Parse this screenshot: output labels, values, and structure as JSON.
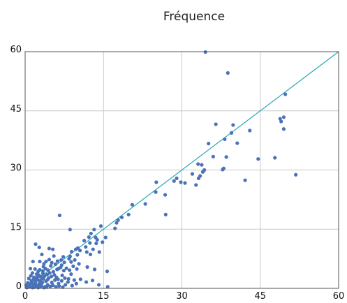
{
  "chart_data": {
    "type": "scatter",
    "title": "Fréquence",
    "xlabel": "",
    "ylabel": "",
    "xlim": [
      0,
      60
    ],
    "ylim": [
      0,
      60
    ],
    "x_ticks": [
      "0",
      "15",
      "30",
      "45",
      "60"
    ],
    "y_ticks": [
      "0",
      "15",
      "30",
      "45",
      "60"
    ],
    "grid": true,
    "reference_line": {
      "from": [
        0,
        0
      ],
      "to": [
        60,
        60
      ],
      "color": "#27a6b8"
    },
    "point_color": "#4a72b8",
    "points": [
      [
        34.5,
        59.9
      ],
      [
        38.8,
        54.6
      ],
      [
        49.8,
        49.2
      ],
      [
        49.5,
        43.4
      ],
      [
        48.8,
        43.0
      ],
      [
        49.0,
        42.3
      ],
      [
        49.5,
        40.4
      ],
      [
        36.5,
        41.6
      ],
      [
        39.8,
        41.4
      ],
      [
        43.0,
        40.0
      ],
      [
        39.5,
        39.4
      ],
      [
        38.2,
        37.8
      ],
      [
        40.6,
        36.8
      ],
      [
        35.1,
        36.7
      ],
      [
        44.6,
        32.8
      ],
      [
        47.8,
        33.1
      ],
      [
        38.5,
        33.3
      ],
      [
        36.0,
        33.4
      ],
      [
        33.1,
        31.5
      ],
      [
        33.8,
        31.3
      ],
      [
        32.0,
        29.0
      ],
      [
        34.3,
        30.0
      ],
      [
        34.0,
        29.5
      ],
      [
        38.0,
        30.4
      ],
      [
        37.8,
        30.1
      ],
      [
        33.5,
        28.5
      ],
      [
        33.2,
        27.9
      ],
      [
        29.0,
        27.9
      ],
      [
        28.5,
        27.2
      ],
      [
        29.8,
        26.9
      ],
      [
        30.6,
        26.7
      ],
      [
        32.7,
        26.2
      ],
      [
        42.1,
        27.4
      ],
      [
        51.8,
        28.8
      ],
      [
        25.1,
        26.9
      ],
      [
        25.0,
        24.4
      ],
      [
        26.8,
        23.7
      ],
      [
        23.0,
        21.4
      ],
      [
        20.5,
        21.2
      ],
      [
        26.9,
        18.7
      ],
      [
        18.5,
        18.0
      ],
      [
        17.8,
        17.3
      ],
      [
        17.5,
        16.6
      ],
      [
        19.8,
        18.7
      ],
      [
        17.2,
        15.2
      ],
      [
        14.5,
        15.8
      ],
      [
        13.2,
        14.9
      ],
      [
        12.6,
        13.9
      ],
      [
        12.2,
        13.0
      ],
      [
        13.5,
        12.9
      ],
      [
        15.4,
        12.9
      ],
      [
        13.8,
        12.3
      ],
      [
        11.3,
        12.1
      ],
      [
        12.4,
        11.5
      ],
      [
        13.6,
        11.4
      ],
      [
        14.8,
        11.7
      ],
      [
        11.6,
        10.5
      ],
      [
        10.1,
        10.2
      ],
      [
        9.7,
        9.9
      ],
      [
        8.9,
        9.3
      ],
      [
        10.5,
        9.6
      ],
      [
        11.8,
        9.2
      ],
      [
        13.0,
        9.9
      ],
      [
        14.2,
        9.2
      ],
      [
        10.0,
        8.5
      ],
      [
        8.6,
        8.1
      ],
      [
        12.5,
        8.6
      ],
      [
        9.5,
        7.2
      ],
      [
        8.4,
        7.5
      ],
      [
        7.3,
        8.0
      ],
      [
        6.9,
        7.2
      ],
      [
        6.2,
        6.9
      ],
      [
        5.8,
        6.1
      ],
      [
        7.5,
        6.6
      ],
      [
        8.8,
        6.7
      ],
      [
        10.3,
        6.2
      ],
      [
        11.9,
        5.4
      ],
      [
        13.3,
        4.8
      ],
      [
        15.7,
        4.3
      ],
      [
        6.6,
        18.5
      ],
      [
        8.6,
        14.9
      ],
      [
        2.0,
        11.2
      ],
      [
        2.7,
        10.4
      ],
      [
        4.6,
        10.1
      ],
      [
        5.3,
        9.9
      ],
      [
        3.2,
        8.6
      ],
      [
        5.5,
        8.2
      ],
      [
        1.5,
        6.8
      ],
      [
        2.8,
        6.8
      ],
      [
        3.6,
        6.2
      ],
      [
        4.9,
        5.7
      ],
      [
        1.9,
        4.9
      ],
      [
        2.5,
        4.3
      ],
      [
        3.4,
        3.8
      ],
      [
        4.2,
        3.5
      ],
      [
        5.0,
        3.0
      ],
      [
        6.0,
        2.8
      ],
      [
        7.1,
        3.3
      ],
      [
        8.3,
        2.4
      ],
      [
        9.4,
        2.1
      ],
      [
        10.6,
        2.3
      ],
      [
        11.7,
        1.6
      ],
      [
        12.9,
        2.0
      ],
      [
        14.1,
        0.9
      ],
      [
        15.8,
        0.4
      ],
      [
        1.1,
        3.2
      ],
      [
        1.7,
        2.8
      ],
      [
        2.2,
        2.3
      ],
      [
        2.9,
        1.9
      ],
      [
        3.5,
        2.4
      ],
      [
        4.0,
        1.8
      ],
      [
        4.5,
        2.6
      ],
      [
        5.1,
        1.5
      ],
      [
        5.7,
        2.1
      ],
      [
        6.4,
        1.2
      ],
      [
        7.0,
        1.9
      ],
      [
        7.7,
        0.9
      ],
      [
        8.2,
        1.6
      ],
      [
        9.0,
        0.7
      ],
      [
        9.8,
        1.2
      ],
      [
        0.5,
        1.4
      ],
      [
        0.8,
        0.6
      ],
      [
        1.2,
        1.9
      ],
      [
        1.6,
        0.8
      ],
      [
        2.0,
        1.4
      ],
      [
        2.4,
        0.5
      ],
      [
        2.7,
        1.1
      ],
      [
        3.1,
        0.8
      ],
      [
        3.3,
        1.5
      ],
      [
        3.8,
        0.4
      ],
      [
        4.3,
        0.9
      ],
      [
        4.8,
        0.5
      ],
      [
        5.3,
        0.8
      ],
      [
        5.9,
        0.4
      ],
      [
        6.5,
        0.6
      ],
      [
        7.2,
        0.3
      ],
      [
        0.3,
        0.2
      ],
      [
        0.6,
        0.3
      ],
      [
        1.0,
        0.4
      ],
      [
        1.4,
        0.2
      ],
      [
        1.8,
        0.3
      ],
      [
        2.1,
        0.7
      ],
      [
        2.5,
        0.2
      ],
      [
        2.9,
        0.4
      ],
      [
        3.6,
        0.2
      ],
      [
        4.1,
        0.3
      ],
      [
        0.2,
        0.8
      ],
      [
        0.9,
        1.1
      ],
      [
        1.3,
        1.3
      ],
      [
        1.9,
        2.0
      ],
      [
        2.3,
        2.8
      ],
      [
        2.6,
        3.4
      ],
      [
        3.0,
        3.0
      ],
      [
        3.4,
        4.4
      ],
      [
        3.9,
        5.0
      ],
      [
        4.4,
        4.6
      ],
      [
        4.7,
        3.9
      ],
      [
        5.4,
        4.2
      ],
      [
        6.1,
        4.8
      ],
      [
        6.8,
        5.3
      ],
      [
        7.4,
        4.5
      ],
      [
        7.9,
        5.1
      ],
      [
        8.5,
        4.6
      ],
      [
        9.2,
        5.6
      ],
      [
        9.9,
        4.9
      ],
      [
        4.0,
        6.8
      ],
      [
        4.6,
        7.3
      ],
      [
        5.1,
        6.5
      ],
      [
        6.4,
        5.0
      ],
      [
        7.0,
        5.9
      ],
      [
        1.0,
        5.0
      ],
      [
        1.4,
        3.9
      ],
      [
        0.7,
        2.5
      ],
      [
        1.6,
        2.3
      ],
      [
        2.6,
        2.0
      ],
      [
        3.2,
        2.6
      ],
      [
        3.7,
        3.1
      ],
      [
        4.3,
        2.2
      ],
      [
        5.6,
        3.4
      ],
      [
        6.3,
        2.3
      ],
      [
        7.6,
        2.6
      ],
      [
        8.8,
        3.6
      ],
      [
        2.2,
        3.6
      ],
      [
        2.8,
        4.7
      ],
      [
        3.5,
        5.5
      ]
    ]
  }
}
